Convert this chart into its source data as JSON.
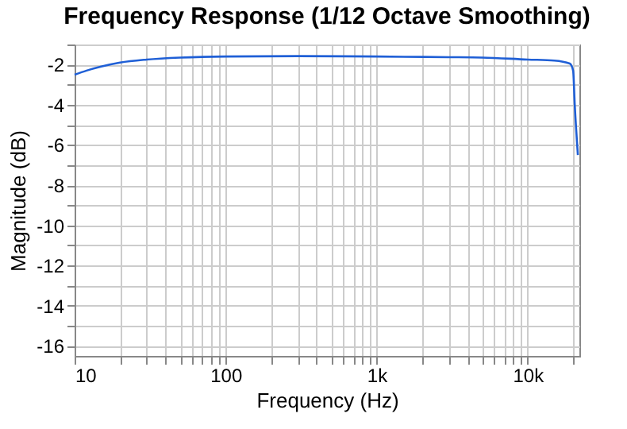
{
  "chart_data": {
    "type": "line",
    "title": "Frequency Response (1/12 Octave Smoothing)",
    "xlabel": "Frequency (Hz)",
    "ylabel": "Magnitude (dB)",
    "x": [
      10,
      12,
      15,
      20,
      30,
      50,
      100,
      300,
      1000,
      3000,
      5000,
      10000,
      15000,
      19000,
      20000,
      20500,
      21500
    ],
    "series": [
      {
        "color": "#1f5fd6",
        "values": [
          -2.5,
          -2.3,
          -2.1,
          -1.9,
          -1.75,
          -1.65,
          -1.6,
          -1.58,
          -1.6,
          -1.63,
          -1.65,
          -1.75,
          -1.8,
          -1.95,
          -2.3,
          -4,
          -6.5
        ]
      }
    ],
    "log": "x",
    "xlim": [
      10,
      22000
    ],
    "ylim": [
      -16.5,
      -1
    ],
    "xticks": [
      10,
      {
        "value": 20,
        "label": null
      },
      {
        "value": 30,
        "label": null
      },
      {
        "value": 40,
        "label": null
      },
      {
        "value": 50,
        "label": null
      },
      {
        "value": 60,
        "label": null
      },
      {
        "value": 70,
        "label": null
      },
      {
        "value": 80,
        "label": null
      },
      {
        "value": 90,
        "label": null
      },
      100,
      {
        "value": 200,
        "label": null
      },
      {
        "value": 300,
        "label": null
      },
      {
        "value": 400,
        "label": null
      },
      {
        "value": 500,
        "label": null
      },
      {
        "value": 600,
        "label": null
      },
      {
        "value": 700,
        "label": null
      },
      {
        "value": 800,
        "label": null
      },
      {
        "value": 900,
        "label": null
      },
      {
        "value": 1000,
        "label": "1k"
      },
      {
        "value": 2000,
        "label": null
      },
      {
        "value": 3000,
        "label": null
      },
      {
        "value": 4000,
        "label": null
      },
      {
        "value": 5000,
        "label": null
      },
      {
        "value": 6000,
        "label": null
      },
      {
        "value": 7000,
        "label": null
      },
      {
        "value": 8000,
        "label": null
      },
      {
        "value": 9000,
        "label": null
      },
      {
        "value": 10000,
        "label": "10k"
      },
      {
        "value": 20000,
        "label": null
      }
    ],
    "yticks": [
      {
        "value": -1,
        "label": null
      },
      -2,
      {
        "value": -3,
        "label": null
      },
      -4,
      {
        "value": -5,
        "label": null
      },
      -6,
      {
        "value": -7,
        "label": null
      },
      -8,
      {
        "value": -9,
        "label": null
      },
      -10,
      {
        "value": -11,
        "label": null
      },
      -12,
      {
        "value": -13,
        "label": null
      },
      -14,
      {
        "value": -15,
        "label": null
      },
      -16
    ],
    "grid": true,
    "legend": false
  }
}
